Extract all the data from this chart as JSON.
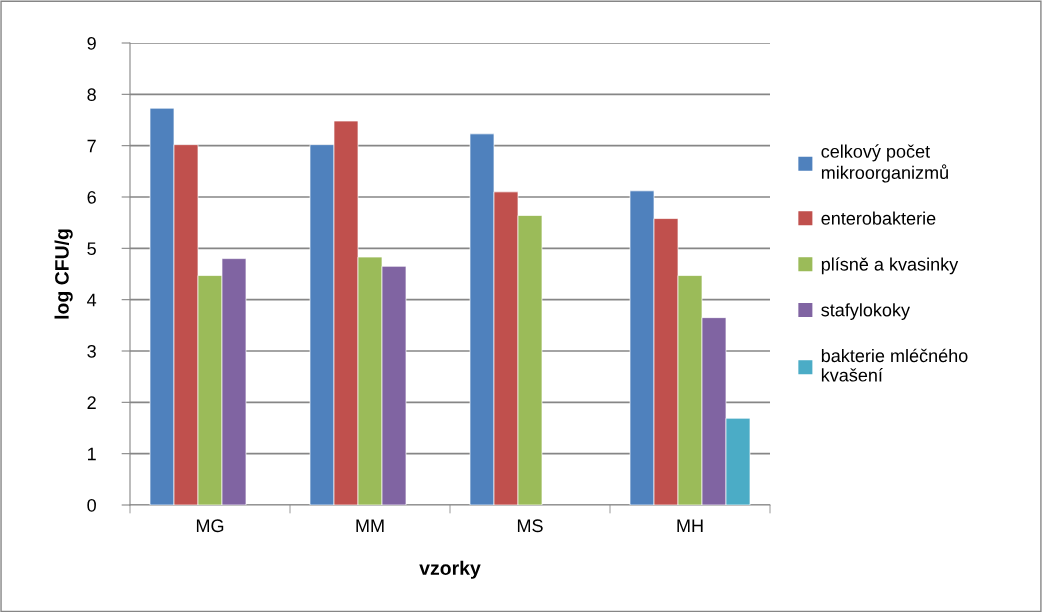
{
  "chart_data": {
    "type": "bar",
    "xlabel": "vzorky",
    "ylabel": "log CFU/g",
    "categories": [
      "MG",
      "MM",
      "MS",
      "MH"
    ],
    "series": [
      {
        "name": "celkový počet\nmikroorganizmů",
        "color": "#4f81bd",
        "values": [
          7.73,
          7.02,
          7.23,
          6.12
        ]
      },
      {
        "name": "enterobakterie",
        "color": "#c0504d",
        "values": [
          7.02,
          7.48,
          6.1,
          5.58
        ]
      },
      {
        "name": "plísně a kvasinky",
        "color": "#9bbb59",
        "values": [
          4.47,
          4.83,
          5.64,
          4.47
        ]
      },
      {
        "name": "stafylokoky",
        "color": "#8064a2",
        "values": [
          4.8,
          4.65,
          null,
          3.65
        ]
      },
      {
        "name": "bakterie mléčného\nkvašení",
        "color": "#4bacc6",
        "values": [
          null,
          null,
          null,
          1.69
        ]
      }
    ],
    "ylim": [
      0,
      9
    ],
    "yticks": [
      0,
      1,
      2,
      3,
      4,
      5,
      6,
      7,
      8,
      9
    ],
    "grid": "y",
    "legend": "right"
  }
}
